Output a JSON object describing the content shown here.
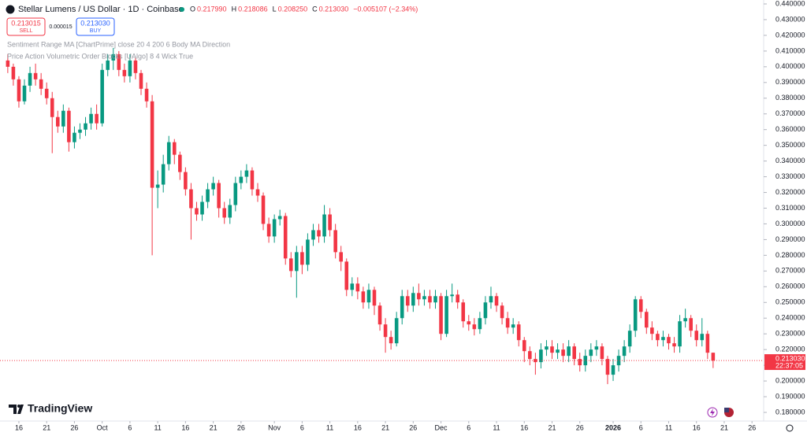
{
  "chart_data": {
    "type": "candlestick",
    "title": "Stellar Lumens / US Dollar · 1D · Coinbase",
    "series": [
      {
        "name": "XLMUSD",
        "up_color": "#089981",
        "down_color": "#f23645",
        "open": [
          0.404,
          0.4,
          0.392,
          0.378,
          0.388,
          0.396,
          0.392,
          0.386,
          0.38,
          0.368,
          0.362,
          0.372,
          0.352,
          0.358,
          0.36,
          0.364,
          0.37,
          0.364,
          0.398,
          0.404,
          0.408,
          0.398,
          0.394,
          0.404,
          0.396,
          0.386,
          0.378,
          0.323,
          0.325,
          0.338,
          0.352,
          0.344,
          0.333,
          0.322,
          0.31,
          0.306,
          0.314,
          0.322,
          0.326,
          0.31,
          0.304,
          0.312,
          0.326,
          0.33,
          0.334,
          0.322,
          0.318,
          0.3,
          0.292,
          0.303,
          0.305,
          0.278,
          0.27,
          0.282,
          0.274,
          0.29,
          0.296,
          0.292,
          0.306,
          0.296,
          0.282,
          0.276,
          0.258,
          0.262,
          0.257,
          0.25,
          0.258,
          0.248,
          0.236,
          0.228,
          0.224,
          0.24,
          0.254,
          0.248,
          0.256,
          0.252,
          0.254,
          0.25,
          0.254,
          0.23,
          0.254,
          0.255,
          0.25,
          0.238,
          0.236,
          0.233,
          0.24,
          0.25,
          0.254,
          0.248,
          0.24,
          0.234,
          0.236,
          0.226,
          0.219,
          0.214,
          0.212,
          0.22,
          0.222,
          0.218,
          0.22,
          0.216,
          0.222,
          0.214,
          0.21,
          0.216,
          0.22,
          0.222,
          0.214,
          0.204,
          0.21,
          0.216,
          0.222,
          0.232,
          0.252,
          0.244,
          0.234,
          0.23,
          0.226,
          0.228,
          0.224,
          0.222,
          0.238,
          0.24,
          0.232,
          0.226,
          0.23,
          0.21799
        ],
        "high": [
          0.408,
          0.402,
          0.394,
          0.392,
          0.4,
          0.402,
          0.396,
          0.39,
          0.384,
          0.372,
          0.376,
          0.374,
          0.362,
          0.364,
          0.368,
          0.374,
          0.376,
          0.402,
          0.408,
          0.412,
          0.41,
          0.402,
          0.408,
          0.406,
          0.398,
          0.39,
          0.382,
          0.334,
          0.344,
          0.356,
          0.354,
          0.346,
          0.336,
          0.326,
          0.314,
          0.318,
          0.326,
          0.33,
          0.328,
          0.314,
          0.316,
          0.33,
          0.334,
          0.338,
          0.336,
          0.326,
          0.32,
          0.304,
          0.306,
          0.309,
          0.307,
          0.282,
          0.286,
          0.286,
          0.294,
          0.3,
          0.3,
          0.312,
          0.31,
          0.3,
          0.286,
          0.278,
          0.266,
          0.266,
          0.26,
          0.262,
          0.26,
          0.25,
          0.24,
          0.232,
          0.244,
          0.258,
          0.258,
          0.26,
          0.262,
          0.258,
          0.258,
          0.258,
          0.256,
          0.258,
          0.262,
          0.258,
          0.252,
          0.242,
          0.24,
          0.244,
          0.254,
          0.26,
          0.256,
          0.25,
          0.244,
          0.24,
          0.238,
          0.228,
          0.222,
          0.218,
          0.224,
          0.226,
          0.226,
          0.224,
          0.224,
          0.226,
          0.224,
          0.218,
          0.22,
          0.224,
          0.226,
          0.224,
          0.216,
          0.214,
          0.22,
          0.226,
          0.236,
          0.254,
          0.254,
          0.246,
          0.238,
          0.232,
          0.232,
          0.23,
          0.228,
          0.242,
          0.246,
          0.242,
          0.236,
          0.24,
          0.232,
          0.218086
        ],
        "low": [
          0.396,
          0.388,
          0.374,
          0.376,
          0.384,
          0.388,
          0.382,
          0.376,
          0.345,
          0.358,
          0.358,
          0.346,
          0.348,
          0.354,
          0.356,
          0.36,
          0.36,
          0.362,
          0.394,
          0.398,
          0.394,
          0.39,
          0.39,
          0.392,
          0.382,
          0.374,
          0.28,
          0.31,
          0.32,
          0.334,
          0.338,
          0.328,
          0.318,
          0.29,
          0.302,
          0.302,
          0.31,
          0.318,
          0.304,
          0.3,
          0.3,
          0.308,
          0.322,
          0.326,
          0.318,
          0.314,
          0.296,
          0.288,
          0.288,
          0.299,
          0.274,
          0.266,
          0.253,
          0.268,
          0.27,
          0.286,
          0.288,
          0.288,
          0.292,
          0.278,
          0.27,
          0.254,
          0.254,
          0.252,
          0.246,
          0.246,
          0.242,
          0.232,
          0.218,
          0.22,
          0.222,
          0.236,
          0.244,
          0.244,
          0.248,
          0.248,
          0.246,
          0.246,
          0.226,
          0.228,
          0.25,
          0.246,
          0.234,
          0.232,
          0.229,
          0.23,
          0.236,
          0.246,
          0.244,
          0.236,
          0.23,
          0.23,
          0.222,
          0.212,
          0.21,
          0.204,
          0.208,
          0.216,
          0.214,
          0.214,
          0.212,
          0.212,
          0.21,
          0.206,
          0.206,
          0.212,
          0.216,
          0.21,
          0.198,
          0.2,
          0.206,
          0.212,
          0.218,
          0.228,
          0.24,
          0.23,
          0.226,
          0.222,
          0.222,
          0.22,
          0.218,
          0.218,
          0.234,
          0.228,
          0.222,
          0.222,
          0.214,
          0.20825
        ],
        "close": [
          0.4,
          0.392,
          0.378,
          0.388,
          0.396,
          0.392,
          0.386,
          0.38,
          0.368,
          0.362,
          0.372,
          0.352,
          0.358,
          0.36,
          0.364,
          0.37,
          0.364,
          0.398,
          0.404,
          0.408,
          0.398,
          0.394,
          0.404,
          0.396,
          0.386,
          0.378,
          0.323,
          0.325,
          0.338,
          0.352,
          0.344,
          0.333,
          0.322,
          0.31,
          0.306,
          0.314,
          0.322,
          0.326,
          0.31,
          0.304,
          0.312,
          0.326,
          0.33,
          0.334,
          0.322,
          0.318,
          0.3,
          0.292,
          0.303,
          0.305,
          0.278,
          0.27,
          0.282,
          0.274,
          0.29,
          0.296,
          0.292,
          0.306,
          0.296,
          0.282,
          0.276,
          0.258,
          0.262,
          0.257,
          0.25,
          0.258,
          0.248,
          0.236,
          0.228,
          0.224,
          0.24,
          0.254,
          0.248,
          0.256,
          0.252,
          0.254,
          0.25,
          0.254,
          0.23,
          0.254,
          0.255,
          0.25,
          0.238,
          0.236,
          0.233,
          0.24,
          0.25,
          0.254,
          0.248,
          0.24,
          0.234,
          0.236,
          0.226,
          0.219,
          0.214,
          0.212,
          0.22,
          0.222,
          0.218,
          0.22,
          0.216,
          0.222,
          0.214,
          0.21,
          0.216,
          0.22,
          0.222,
          0.214,
          0.204,
          0.21,
          0.216,
          0.222,
          0.232,
          0.252,
          0.244,
          0.234,
          0.23,
          0.226,
          0.228,
          0.224,
          0.222,
          0.238,
          0.24,
          0.232,
          0.226,
          0.23,
          0.218,
          0.21303
        ]
      }
    ],
    "last_price": {
      "value": 0.21303,
      "label": "0.213030",
      "countdown": "22:37:05",
      "color": "#f23645"
    },
    "xlim": [
      -1.4,
      136.1
    ],
    "xticks": [
      {
        "value": 2,
        "label": "16"
      },
      {
        "value": 7,
        "label": "21"
      },
      {
        "value": 12,
        "label": "26"
      },
      {
        "value": 17,
        "label": "Oct"
      },
      {
        "value": 22,
        "label": "6"
      },
      {
        "value": 27,
        "label": "11"
      },
      {
        "value": 32,
        "label": "16"
      },
      {
        "value": 37,
        "label": "21"
      },
      {
        "value": 42,
        "label": "26"
      },
      {
        "value": 48,
        "label": "Nov"
      },
      {
        "value": 53,
        "label": "6"
      },
      {
        "value": 58,
        "label": "11"
      },
      {
        "value": 63,
        "label": "16"
      },
      {
        "value": 68,
        "label": "21"
      },
      {
        "value": 73,
        "label": "26"
      },
      {
        "value": 78,
        "label": "Dec"
      },
      {
        "value": 83,
        "label": "6"
      },
      {
        "value": 88,
        "label": "11"
      },
      {
        "value": 93,
        "label": "16"
      },
      {
        "value": 98,
        "label": "21"
      },
      {
        "value": 103,
        "label": "26"
      },
      {
        "value": 109,
        "label": "2026"
      },
      {
        "value": 114,
        "label": "6"
      },
      {
        "value": 119,
        "label": "11"
      },
      {
        "value": 124,
        "label": "16"
      },
      {
        "value": 129,
        "label": "21"
      },
      {
        "value": 134,
        "label": "26"
      }
    ],
    "ylim": [
      0.1745,
      0.4425
    ],
    "yticks": [
      {
        "value": 0.18,
        "label": "0.180000"
      },
      {
        "value": 0.19,
        "label": "0.190000"
      },
      {
        "value": 0.2,
        "label": "0.200000"
      },
      {
        "value": 0.21,
        "label": "0.210000"
      },
      {
        "value": 0.22,
        "label": "0.220000"
      },
      {
        "value": 0.23,
        "label": "0.230000"
      },
      {
        "value": 0.24,
        "label": "0.240000"
      },
      {
        "value": 0.25,
        "label": "0.250000"
      },
      {
        "value": 0.26,
        "label": "0.260000"
      },
      {
        "value": 0.27,
        "label": "0.270000"
      },
      {
        "value": 0.28,
        "label": "0.280000"
      },
      {
        "value": 0.29,
        "label": "0.290000"
      },
      {
        "value": 0.3,
        "label": "0.300000"
      },
      {
        "value": 0.31,
        "label": "0.310000"
      },
      {
        "value": 0.32,
        "label": "0.320000"
      },
      {
        "value": 0.33,
        "label": "0.330000"
      },
      {
        "value": 0.34,
        "label": "0.340000"
      },
      {
        "value": 0.35,
        "label": "0.350000"
      },
      {
        "value": 0.36,
        "label": "0.360000"
      },
      {
        "value": 0.37,
        "label": "0.370000"
      },
      {
        "value": 0.38,
        "label": "0.380000"
      },
      {
        "value": 0.39,
        "label": "0.390000"
      },
      {
        "value": 0.4,
        "label": "0.400000"
      },
      {
        "value": 0.41,
        "label": "0.410000"
      },
      {
        "value": 0.42,
        "label": "0.420000"
      },
      {
        "value": 0.43,
        "label": "0.430000"
      },
      {
        "value": 0.44,
        "label": "0.440000"
      }
    ],
    "grid": false
  },
  "legend": {
    "ohlc": [
      {
        "key": "O",
        "value": "0.217990"
      },
      {
        "key": "H",
        "value": "0.218086"
      },
      {
        "key": "L",
        "value": "0.208250"
      },
      {
        "key": "C",
        "value": "0.213030"
      }
    ],
    "change": "−0.005107 (−2.34%)"
  },
  "trade": {
    "sell_price": "0.213015",
    "sell": "SELL",
    "spread": "0.000015",
    "buy_price": "0.213030",
    "buy": "BUY"
  },
  "indicators": [
    "Sentiment Range MA [ChartPrime] close 20 4 200 6 Body MA Direction",
    "Price Action Volumetric Order Blocks [UAlgo] 8 4 Wick True"
  ],
  "brand": "TradingView"
}
